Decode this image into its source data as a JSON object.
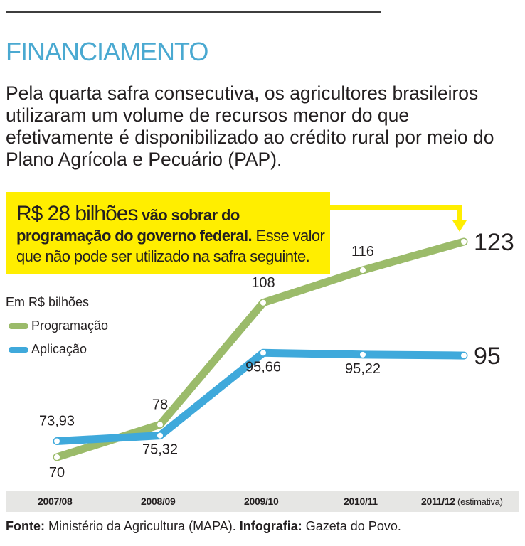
{
  "header": {
    "section_title": "FINANCIAMENTO",
    "intro": "Pela quarta safra consecutiva, os agricultores brasileiros utilizaram um volume de recursos menor do que efetivamente é disponibilizado ao crédito rural por meio do Plano Agrícola e Pecuário (PAP)."
  },
  "callout": {
    "amount": "R$ 28 bilhões",
    "bold_text": " vão sobrar do programação do governo federal.",
    "normal_text": " Esse valor que não pode ser utilizado na safra seguinte."
  },
  "legend": {
    "unit": "Em R$ bilhões",
    "items": [
      {
        "label": "Programação",
        "color": "#9bbb6a"
      },
      {
        "label": "Aplicação",
        "color": "#3fa9db"
      }
    ]
  },
  "footer": {
    "source_label": "Fonte:",
    "source_text": " Ministério da Agricultura (MAPA).",
    "credit_label": " Infografia:",
    "credit_text": " Gazeta do Povo."
  },
  "chart_data": {
    "type": "line",
    "x": [
      "2007/08",
      "2008/09",
      "2009/10",
      "2010/11",
      "2011/12"
    ],
    "x_note": "(estimativa)",
    "ylabel": "Em R$ bilhões",
    "series": [
      {
        "name": "Programação",
        "color": "#9bbb6a",
        "values": [
          70,
          78,
          108,
          116,
          123
        ],
        "labels": [
          "70",
          "78",
          "108",
          "116",
          "123"
        ]
      },
      {
        "name": "Aplicação",
        "color": "#3fa9db",
        "values": [
          73.93,
          75.32,
          95.66,
          95.22,
          95
        ],
        "labels": [
          "73,93",
          "75,32",
          "95,66",
          "95,22",
          "95"
        ]
      }
    ],
    "grid": false
  }
}
